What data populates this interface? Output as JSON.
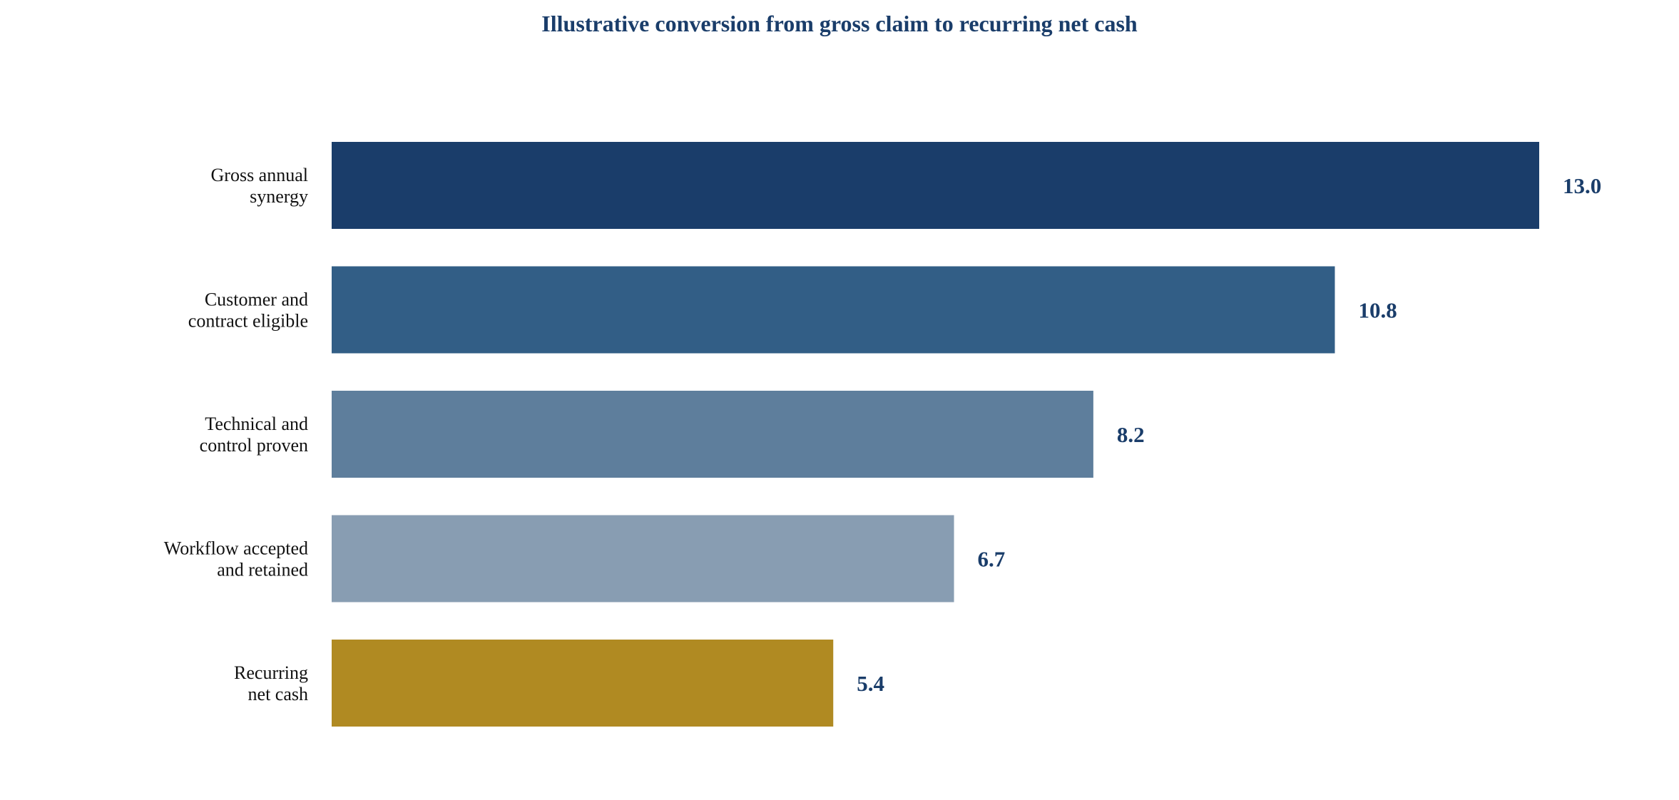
{
  "chart_data": {
    "type": "bar",
    "orientation": "horizontal",
    "title": "Illustrative conversion from gross claim to recurring net cash",
    "xlabel": "",
    "ylabel": "",
    "xlim": [
      0,
      13.0
    ],
    "grid": false,
    "legend": "none",
    "categories": [
      [
        "Gross annual",
        "synergy"
      ],
      [
        "Customer and",
        "contract eligible"
      ],
      [
        "Technical and",
        "control proven"
      ],
      [
        "Workflow accepted",
        "and retained"
      ],
      [
        "Recurring",
        "net cash"
      ]
    ],
    "values": [
      13.0,
      10.8,
      8.2,
      6.7,
      5.4
    ],
    "value_labels": [
      "13.0",
      "10.8",
      "8.2",
      "6.7",
      "5.4"
    ],
    "colors": [
      "#1a3d6a",
      "#325e86",
      "#5e7e9c",
      "#889db2",
      "#b08a22"
    ],
    "title_color": "#1a3d6a",
    "value_label_color": "#1a3d6a"
  }
}
